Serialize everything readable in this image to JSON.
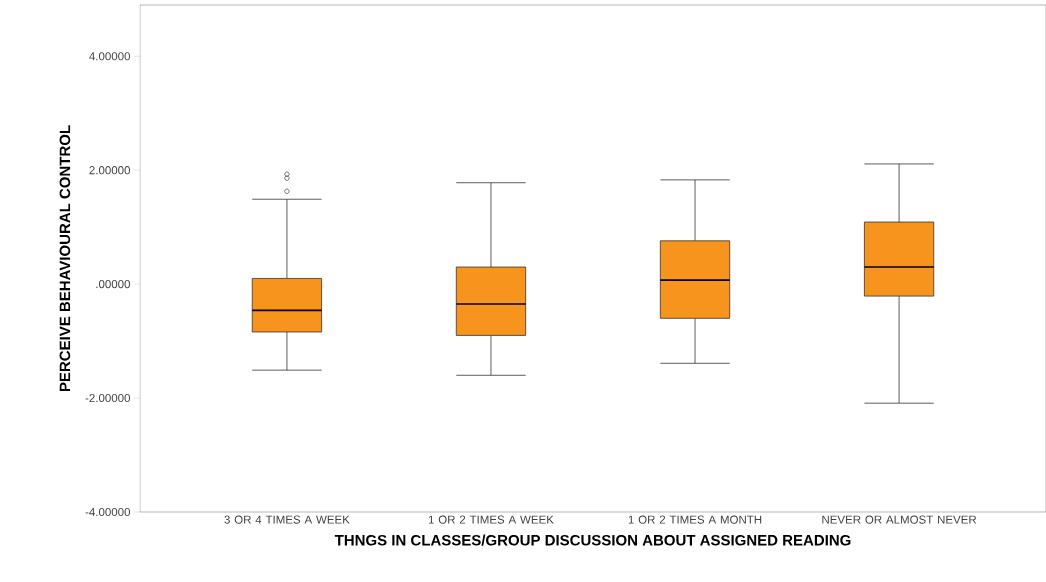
{
  "chart_data": {
    "type": "box",
    "xlabel": "THNGS IN CLASSES/GROUP DISCUSSION ABOUT ASSIGNED READING",
    "ylabel": "PERCEIVE BEHAVIOURAL CONTROL",
    "categories": [
      "3 OR 4 TIMES A WEEK",
      "1 OR 2 TIMES A WEEK",
      "1 OR 2 TIMES A MONTH",
      "NEVER OR ALMOST NEVER"
    ],
    "color": "#f7941d",
    "boxes": [
      {
        "low": -1.51,
        "q1": -0.84,
        "median": -0.46,
        "q3": 0.1,
        "high": 1.49,
        "outliers": [
          1.63,
          1.86,
          1.93
        ]
      },
      {
        "low": -1.6,
        "q1": -0.9,
        "median": -0.35,
        "q3": 0.3,
        "high": 1.78
      },
      {
        "low": -1.39,
        "q1": -0.6,
        "median": 0.07,
        "q3": 0.76,
        "high": 1.83
      },
      {
        "low": -2.09,
        "q1": -0.21,
        "median": 0.3,
        "q3": 1.09,
        "high": 2.11
      }
    ],
    "ylim": [
      -4,
      4.9
    ],
    "yticks": [
      {
        "value": -4,
        "label": "-4.00000"
      },
      {
        "value": -2,
        "label": "-2.00000"
      },
      {
        "value": 0,
        "label": ".00000"
      },
      {
        "value": 2,
        "label": "2.00000"
      },
      {
        "value": 4,
        "label": "4.00000"
      }
    ]
  }
}
